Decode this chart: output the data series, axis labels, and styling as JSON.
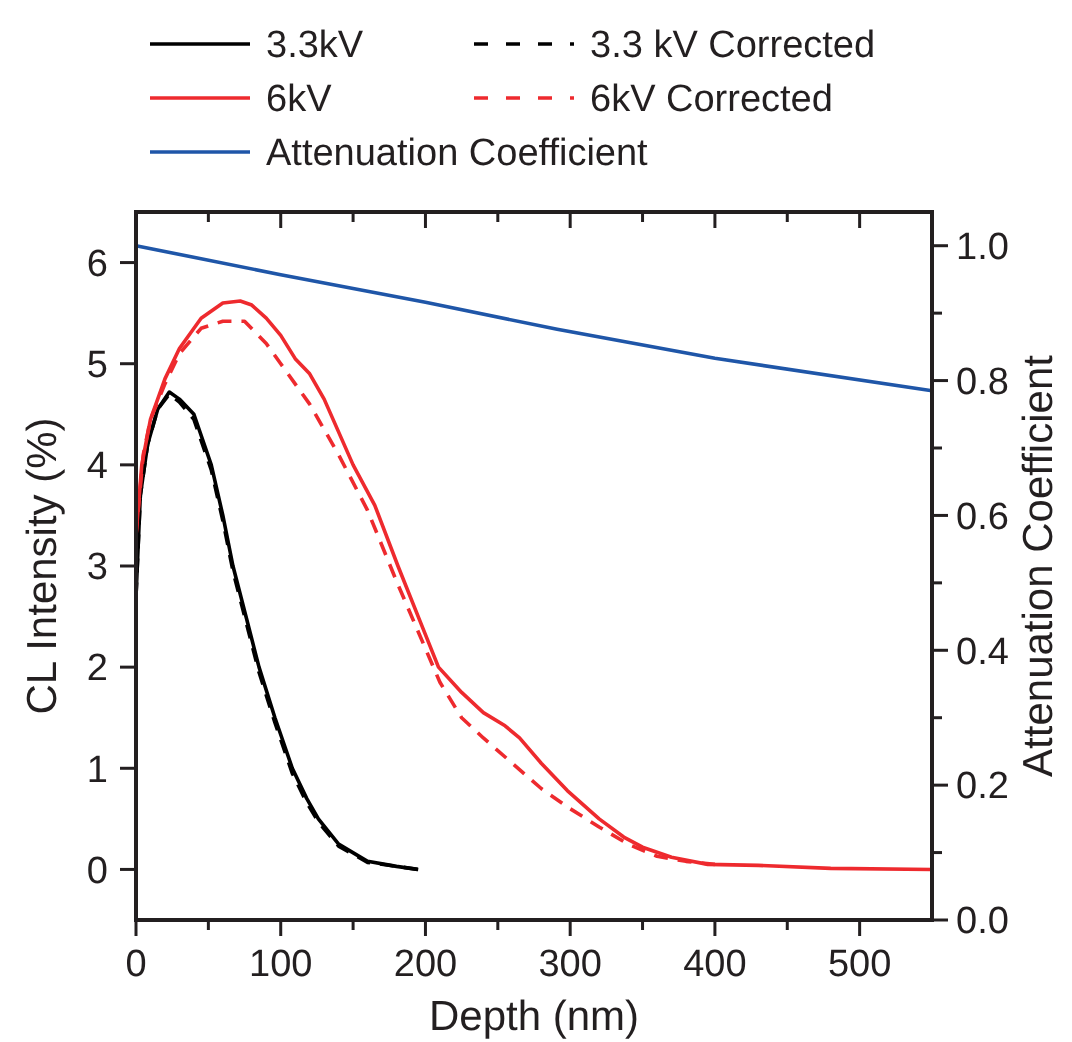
{
  "chart_data": {
    "type": "line",
    "xlabel": "Depth (nm)",
    "ylabel": "CL Intensity (%)",
    "y2label": "Attenuation Coefficient",
    "xlim": [
      0,
      550
    ],
    "xticks": [
      0,
      {
        "value": 50,
        "label": null
      },
      100,
      {
        "value": 150,
        "label": null
      },
      200,
      {
        "value": 250,
        "label": null
      },
      300,
      {
        "value": 350,
        "label": null
      },
      400,
      {
        "value": 450,
        "label": null
      },
      500
    ],
    "ylim": [
      -0.5,
      6.5
    ],
    "yticks": [
      0,
      1,
      2,
      3,
      4,
      5,
      6
    ],
    "y2lim": [
      0,
      1.05
    ],
    "y2ticks": [
      {
        "value": 0,
        "label": "0.0"
      },
      {
        "value": 0.1,
        "label": null
      },
      {
        "value": 0.2,
        "label": "0.2"
      },
      {
        "value": 0.3,
        "label": null
      },
      {
        "value": 0.4,
        "label": "0.4"
      },
      {
        "value": 0.5,
        "label": null
      },
      {
        "value": 0.6,
        "label": "0.6"
      },
      {
        "value": 0.7,
        "label": null
      },
      {
        "value": 0.8,
        "label": "0.8"
      },
      {
        "value": 0.9,
        "label": null
      },
      {
        "value": 1,
        "label": "1.0"
      }
    ],
    "legend": "top",
    "grid": false,
    "series": [
      {
        "name": "3.3kV",
        "color": "#000000",
        "line_style": "solid",
        "x": [
          0,
          3,
          8,
          15,
          23,
          30,
          40,
          52,
          60,
          67,
          76,
          85,
          96,
          108,
          118,
          126,
          140,
          160,
          180,
          195
        ],
        "values": [
          2.7,
          3.7,
          4.2,
          4.55,
          4.72,
          4.65,
          4.5,
          4.0,
          3.5,
          3.0,
          2.5,
          2.0,
          1.5,
          1.0,
          0.7,
          0.5,
          0.25,
          0.08,
          0.03,
          0.0
        ]
      },
      {
        "name": "3.3 kV Corrected",
        "color": "#000000",
        "line_style": "dashed",
        "x": [
          0,
          3,
          8,
          15,
          23,
          30,
          40,
          52,
          60,
          67,
          76,
          85,
          96,
          108,
          118,
          126,
          140,
          160,
          180,
          195
        ],
        "values": [
          2.7,
          3.7,
          4.2,
          4.55,
          4.7,
          4.62,
          4.45,
          3.95,
          3.45,
          2.95,
          2.45,
          1.95,
          1.45,
          0.95,
          0.66,
          0.47,
          0.23,
          0.07,
          0.03,
          0.0
        ]
      },
      {
        "name": "6kV",
        "color": "#ee2a2e",
        "line_style": "solid",
        "x": [
          0,
          4,
          10,
          20,
          30,
          45,
          60,
          72,
          80,
          90,
          100,
          110,
          120,
          130,
          150,
          165,
          181,
          195,
          209,
          225,
          240,
          255,
          265,
          280,
          298,
          320,
          337,
          350,
          370,
          395,
          430,
          480,
          550
        ],
        "values": [
          3.3,
          4.0,
          4.45,
          4.85,
          5.15,
          5.45,
          5.6,
          5.62,
          5.58,
          5.45,
          5.28,
          5.05,
          4.9,
          4.65,
          4.0,
          3.6,
          3.0,
          2.5,
          2.0,
          1.75,
          1.55,
          1.42,
          1.3,
          1.05,
          0.78,
          0.5,
          0.32,
          0.22,
          0.12,
          0.05,
          0.04,
          0.01,
          0.0
        ]
      },
      {
        "name": "6kV Corrected",
        "color": "#ee2a2e",
        "line_style": "dashed",
        "x": [
          0,
          5,
          10,
          20,
          30,
          45,
          60,
          75,
          90,
          100,
          120,
          140,
          160,
          180,
          195,
          210,
          225,
          240,
          260,
          280,
          300,
          320,
          340,
          360,
          380,
          400
        ],
        "values": [
          3.3,
          4.1,
          4.45,
          4.8,
          5.1,
          5.35,
          5.42,
          5.42,
          5.2,
          5.0,
          4.6,
          4.1,
          3.55,
          2.85,
          2.35,
          1.85,
          1.5,
          1.3,
          1.05,
          0.8,
          0.6,
          0.42,
          0.25,
          0.13,
          0.08,
          0.05
        ]
      },
      {
        "name": "Attenuation Coefficient",
        "color": "#1f56a8",
        "line_style": "solid",
        "axis": "y2",
        "x": [
          0,
          100,
          200,
          291,
          400,
          550
        ],
        "values": [
          1.0,
          0.957,
          0.916,
          0.876,
          0.833,
          0.785
        ]
      }
    ]
  }
}
